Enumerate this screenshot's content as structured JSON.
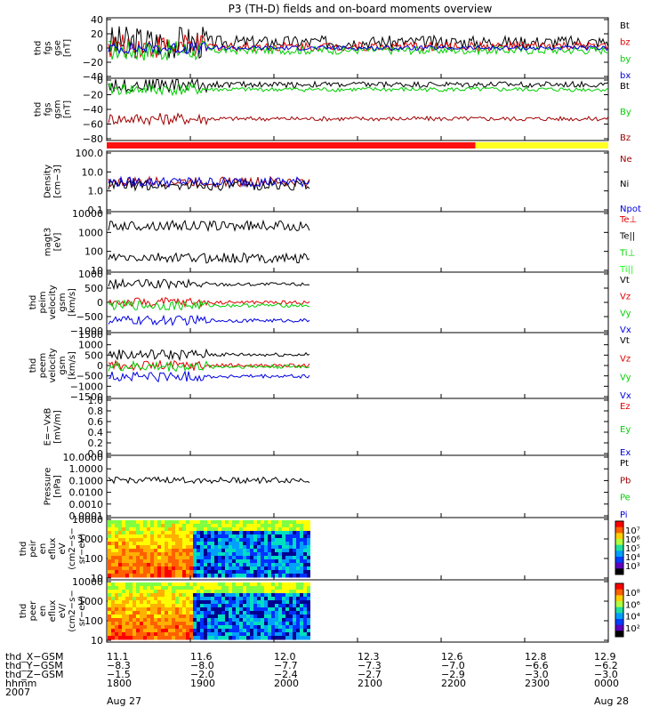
{
  "title": "P3 (TH-D) fields and on-board moments overview",
  "colors": {
    "black": "#000000",
    "red": "#e00000",
    "green": "#00d000",
    "blue": "#0000e0",
    "darkred": "#a00000",
    "bar_red": "#ff1010",
    "bar_yellow": "#ffff20",
    "lightgreen": "#20ff20"
  },
  "chart_data": [
    {
      "type": "line",
      "id": "fgs_gse",
      "ylabel": [
        "thd",
        "fgs",
        "gse",
        "[nT]"
      ],
      "yticks": [
        "40",
        "20",
        "0",
        "−20",
        "−40"
      ],
      "ylim": [
        -40,
        40
      ],
      "legend": [
        {
          "label": "Bt",
          "color": "black"
        },
        {
          "label": "bz",
          "color": "red"
        },
        {
          "label": "by",
          "color": "green"
        },
        {
          "label": "bx",
          "color": "blue"
        }
      ],
      "series": [
        {
          "name": "Bt",
          "level": 8,
          "noise": 14,
          "end": 1
        },
        {
          "name": "bz",
          "level": 2,
          "noise": 10,
          "end": 1
        },
        {
          "name": "by",
          "level": -3,
          "noise": 9,
          "end": 1
        },
        {
          "name": "bx",
          "level": 0,
          "noise": 5,
          "end": 1
        }
      ]
    },
    {
      "type": "line",
      "id": "fgs_gsm",
      "ylabel": [
        "thd",
        "fgs",
        "gsm",
        "[nT]"
      ],
      "yticks": [
        "0",
        "−20",
        "−40",
        "−60",
        "−80"
      ],
      "ylim": [
        -90,
        10
      ],
      "legend": [
        {
          "label": "Bt",
          "color": "black"
        },
        {
          "label": "By",
          "color": "green"
        },
        {
          "label": "Bz",
          "color": "darkred"
        }
      ],
      "series": [
        {
          "name": "Bt",
          "level": 0,
          "noise": 8,
          "end": 1
        },
        {
          "name": "By",
          "level": -8,
          "noise": 6,
          "end": 1
        },
        {
          "name": "Bz",
          "level": -55,
          "noise": 6,
          "end": 1
        }
      ]
    },
    {
      "type": "line",
      "id": "density",
      "ylabel": [
        "Density",
        "[cm−3]"
      ],
      "yticks": [
        "100.0",
        "10.0",
        "1.0",
        "0.1"
      ],
      "ylim": [
        0.1,
        100
      ],
      "log": true,
      "legend": [
        {
          "label": "Ne",
          "color": "darkred"
        },
        {
          "label": "Ni",
          "color": "black"
        },
        {
          "label": "Npot",
          "color": "blue"
        }
      ],
      "series": [
        {
          "name": "Ne",
          "value": 3,
          "end": 0.405
        },
        {
          "name": "Ni",
          "value": 2,
          "end": 0.405
        },
        {
          "name": "Npot",
          "value": 3,
          "end": 0.405
        }
      ]
    },
    {
      "type": "line",
      "id": "temperature",
      "ylabel": [
        "magt3",
        "[eV]"
      ],
      "yticks": [
        "10000",
        "1000",
        "100",
        "10"
      ],
      "ylim": [
        10,
        10000
      ],
      "log": true,
      "legend": [
        {
          "label": "Te⊥",
          "color": "red"
        },
        {
          "label": "Te||",
          "color": "black"
        },
        {
          "label": "Ti⊥",
          "color": "green"
        },
        {
          "label": "Ti||",
          "color": "lightgreen"
        }
      ],
      "series": [
        {
          "name": "Ti",
          "value": 2000,
          "end": 0.405
        },
        {
          "name": "Te",
          "value": 50,
          "end": 0.405
        }
      ]
    },
    {
      "type": "line",
      "id": "peim_velocity",
      "ylabel": [
        "thd",
        "peim",
        "velocity",
        "gsm",
        "[km/s]"
      ],
      "yticks": [
        "1000",
        "500",
        "0",
        "−500",
        "−1000"
      ],
      "ylim": [
        -1000,
        1000
      ],
      "legend": [
        {
          "label": "Vt",
          "color": "black"
        },
        {
          "label": "Vz",
          "color": "red"
        },
        {
          "label": "Vy",
          "color": "green"
        },
        {
          "label": "Vx",
          "color": "blue"
        }
      ],
      "series": [
        {
          "name": "Vt",
          "value": 600,
          "end": 0.405
        },
        {
          "name": "Vz",
          "value": 0,
          "end": 0.405
        },
        {
          "name": "Vy",
          "value": -100,
          "end": 0.405
        },
        {
          "name": "Vx",
          "value": -600,
          "end": 0.405
        }
      ]
    },
    {
      "type": "line",
      "id": "peem_velocity",
      "ylabel": [
        "thd",
        "peem",
        "velocity",
        "gsm",
        "[km/s]"
      ],
      "yticks": [
        "1500",
        "1000",
        "500",
        "0",
        "−500",
        "−1000",
        "−1500"
      ],
      "ylim": [
        -1500,
        1500
      ],
      "legend": [
        {
          "label": "Vt",
          "color": "black"
        },
        {
          "label": "Vz",
          "color": "red"
        },
        {
          "label": "Vy",
          "color": "green"
        },
        {
          "label": "Vx",
          "color": "blue"
        }
      ],
      "series": [
        {
          "name": "Vt",
          "value": 500,
          "end": 0.405
        },
        {
          "name": "Vz",
          "value": 0,
          "end": 0.405
        },
        {
          "name": "Vy",
          "value": -50,
          "end": 0.405
        },
        {
          "name": "Vx",
          "value": -500,
          "end": 0.405
        }
      ]
    },
    {
      "type": "line",
      "id": "efield",
      "ylabel": [
        "E=−VxB",
        "[mV/m]"
      ],
      "yticks": [
        "1.0",
        "0.8",
        "0.6",
        "0.4",
        "0.2",
        "0.0"
      ],
      "ylim": [
        0,
        1
      ],
      "legend": [
        {
          "label": "Ez",
          "color": "red"
        },
        {
          "label": "Ey",
          "color": "green"
        },
        {
          "label": "Ex",
          "color": "blue"
        }
      ],
      "series": []
    },
    {
      "type": "line",
      "id": "pressure",
      "ylabel": [
        "Pressure",
        "[nPa]"
      ],
      "yticks": [
        "10.0000",
        "1.0000",
        "0.1000",
        "0.0100",
        "0.0010",
        "0.0001"
      ],
      "ylim": [
        0.0001,
        10
      ],
      "log": true,
      "legend": [
        {
          "label": "Pt",
          "color": "black"
        },
        {
          "label": "Pb",
          "color": "darkred"
        },
        {
          "label": "Pe",
          "color": "green"
        },
        {
          "label": "Pi",
          "color": "blue"
        }
      ],
      "series": [
        {
          "name": "Pt",
          "value": 0.1,
          "end": 0.405
        }
      ]
    },
    {
      "type": "heatmap",
      "id": "peir_eflux",
      "ylabel": [
        "thd",
        "peir",
        "en",
        "eflux",
        "eV",
        "(cm2−s−",
        "sr−eV)"
      ],
      "yticks": [
        "10000",
        "1000",
        "100",
        "10"
      ],
      "ylim": [
        10,
        10000
      ],
      "log": true,
      "colorbar_ticks": [
        "10⁷",
        "10⁶",
        "10⁵",
        "10⁴",
        "10³"
      ],
      "end": 0.405
    },
    {
      "type": "heatmap",
      "id": "peer_eflux",
      "ylabel": [
        "thd",
        "peer",
        "en",
        "eflux",
        "eV/",
        "(cm2−s−",
        "sr−eV)"
      ],
      "yticks": [
        "10000",
        "1000",
        "100",
        "10"
      ],
      "ylim": [
        10,
        10000
      ],
      "log": true,
      "colorbar_ticks": [
        "10⁸",
        "10⁶",
        "10⁴",
        "10²"
      ],
      "end": 0.405
    }
  ],
  "xaxis": {
    "row_labels": [
      "thd_X−GSM",
      "thd_Y−GSM",
      "thd_Z−GSM",
      "hhmm",
      "2007"
    ],
    "columns": [
      {
        "pos": 0,
        "values": [
          "11.1",
          "−8.3",
          "−1.5",
          "1800",
          "Aug 27"
        ]
      },
      {
        "pos": 0.1667,
        "values": [
          "11.6",
          "−8.0",
          "−2.0",
          "1900",
          ""
        ]
      },
      {
        "pos": 0.3333,
        "values": [
          "12.0",
          "−7.7",
          "−2.4",
          "2000",
          ""
        ]
      },
      {
        "pos": 0.5,
        "values": [
          "12.3",
          "−7.3",
          "−2.7",
          "2100",
          ""
        ]
      },
      {
        "pos": 0.6667,
        "values": [
          "12.6",
          "−7.0",
          "−2.9",
          "2200",
          ""
        ]
      },
      {
        "pos": 0.8333,
        "values": [
          "12.8",
          "−6.6",
          "−3.0",
          "2300",
          ""
        ]
      },
      {
        "pos": 1,
        "values": [
          "12.9",
          "−6.2",
          "−3.0",
          "0000",
          "Aug 28"
        ]
      }
    ]
  },
  "mode_bar": {
    "red_fraction": 0.735
  }
}
